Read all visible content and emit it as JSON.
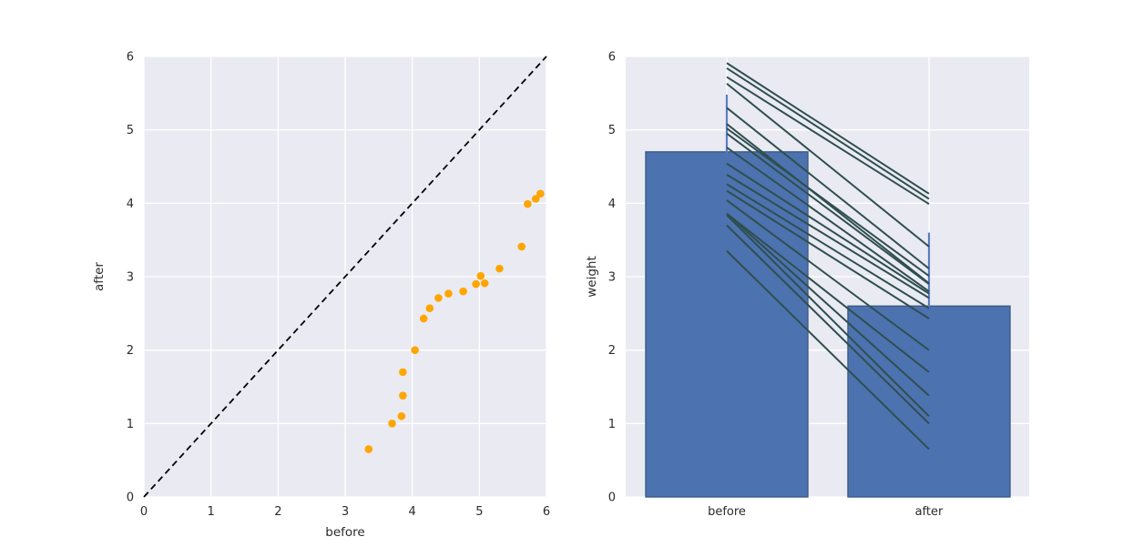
{
  "figure": {
    "background": "#ffffff",
    "axes_background": "#eaeaf2",
    "grid_color": "#ffffff"
  },
  "chart_data": [
    {
      "type": "scatter",
      "title": "",
      "xlabel": "before",
      "ylabel": "after",
      "xlim": [
        0,
        6
      ],
      "ylim": [
        0,
        6
      ],
      "xticks": [
        "0",
        "1",
        "2",
        "3",
        "4",
        "5",
        "6"
      ],
      "yticks": [
        "0",
        "1",
        "2",
        "3",
        "4",
        "5",
        "6"
      ],
      "grid": true,
      "legend": false,
      "marker_color": "#ffa500",
      "reference_line": {
        "kind": "identity",
        "from": [
          0,
          0
        ],
        "to": [
          6,
          6
        ],
        "style": "dashed",
        "color": "#000000"
      },
      "points": [
        [
          3.35,
          0.65
        ],
        [
          3.7,
          1.0
        ],
        [
          3.84,
          1.1
        ],
        [
          3.86,
          1.38
        ],
        [
          3.86,
          1.7
        ],
        [
          4.04,
          2.0
        ],
        [
          4.17,
          2.43
        ],
        [
          4.26,
          2.57
        ],
        [
          4.39,
          2.71
        ],
        [
          4.54,
          2.77
        ],
        [
          4.76,
          2.8
        ],
        [
          4.95,
          2.9
        ],
        [
          5.02,
          3.01
        ],
        [
          5.08,
          2.91
        ],
        [
          5.3,
          3.11
        ],
        [
          5.63,
          3.41
        ],
        [
          5.72,
          3.99
        ],
        [
          5.84,
          4.06
        ],
        [
          5.91,
          4.13
        ]
      ]
    },
    {
      "type": "bar",
      "title": "",
      "xlabel": "",
      "ylabel": "weight",
      "categories": [
        "before",
        "after"
      ],
      "values": [
        4.7,
        2.6
      ],
      "error_cap_top": [
        5.48,
        3.6
      ],
      "ylim": [
        0,
        6
      ],
      "yticks": [
        "0",
        "1",
        "2",
        "3",
        "4",
        "5",
        "6"
      ],
      "grid": true,
      "legend": false,
      "bar_color": "#4c72b0",
      "bar_edge_color": "#3c5a84",
      "error_color": "#5b7fc4",
      "pair_line_color": "#2f4f4f",
      "paired_lines": [
        [
          3.35,
          0.65
        ],
        [
          3.7,
          1.0
        ],
        [
          3.84,
          1.1
        ],
        [
          3.86,
          1.38
        ],
        [
          3.86,
          1.7
        ],
        [
          4.04,
          2.0
        ],
        [
          4.17,
          2.43
        ],
        [
          4.26,
          2.57
        ],
        [
          4.39,
          2.71
        ],
        [
          4.54,
          2.77
        ],
        [
          4.76,
          2.8
        ],
        [
          4.95,
          2.9
        ],
        [
          5.02,
          3.01
        ],
        [
          5.08,
          2.91
        ],
        [
          5.3,
          3.11
        ],
        [
          5.63,
          3.41
        ],
        [
          5.72,
          3.99
        ],
        [
          5.84,
          4.06
        ],
        [
          5.91,
          4.13
        ]
      ]
    }
  ]
}
